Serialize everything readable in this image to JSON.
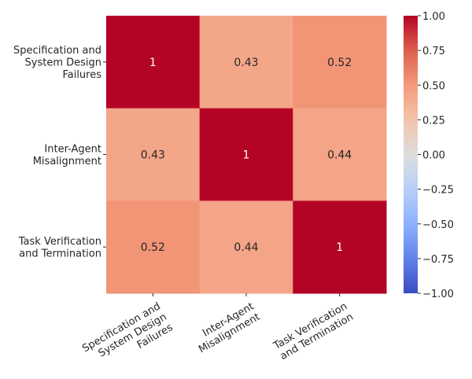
{
  "chart_data": {
    "type": "heatmap",
    "title": "",
    "xlabel": "",
    "ylabel": "",
    "row_labels": [
      [
        "Specification and",
        "System Design",
        "Failures"
      ],
      [
        "Inter-Agent",
        "Misalignment"
      ],
      [
        "Task Verification",
        "and Termination"
      ]
    ],
    "col_labels": [
      [
        "Specification and",
        "System Design",
        "Failures"
      ],
      [
        "Inter-Agent",
        "Misalignment"
      ],
      [
        "Task Verification",
        "and Termination"
      ]
    ],
    "values": [
      [
        1,
        0.43,
        0.52
      ],
      [
        0.43,
        1,
        0.44
      ],
      [
        0.52,
        0.44,
        1
      ]
    ],
    "annotations": [
      [
        "1",
        "0.43",
        "0.52"
      ],
      [
        "0.43",
        "1",
        "0.44"
      ],
      [
        "0.52",
        "0.44",
        "1"
      ]
    ],
    "colormap": "coolwarm",
    "vmin": -1,
    "vmax": 1,
    "colorbar_ticks": [
      "1.00",
      "0.75",
      "0.50",
      "0.25",
      "0.00",
      "−0.25",
      "−0.50",
      "−0.75",
      "−1.00"
    ],
    "colorbar_tick_values": [
      1,
      0.75,
      0.5,
      0.25,
      0,
      -0.25,
      -0.5,
      -0.75,
      -1
    ]
  }
}
